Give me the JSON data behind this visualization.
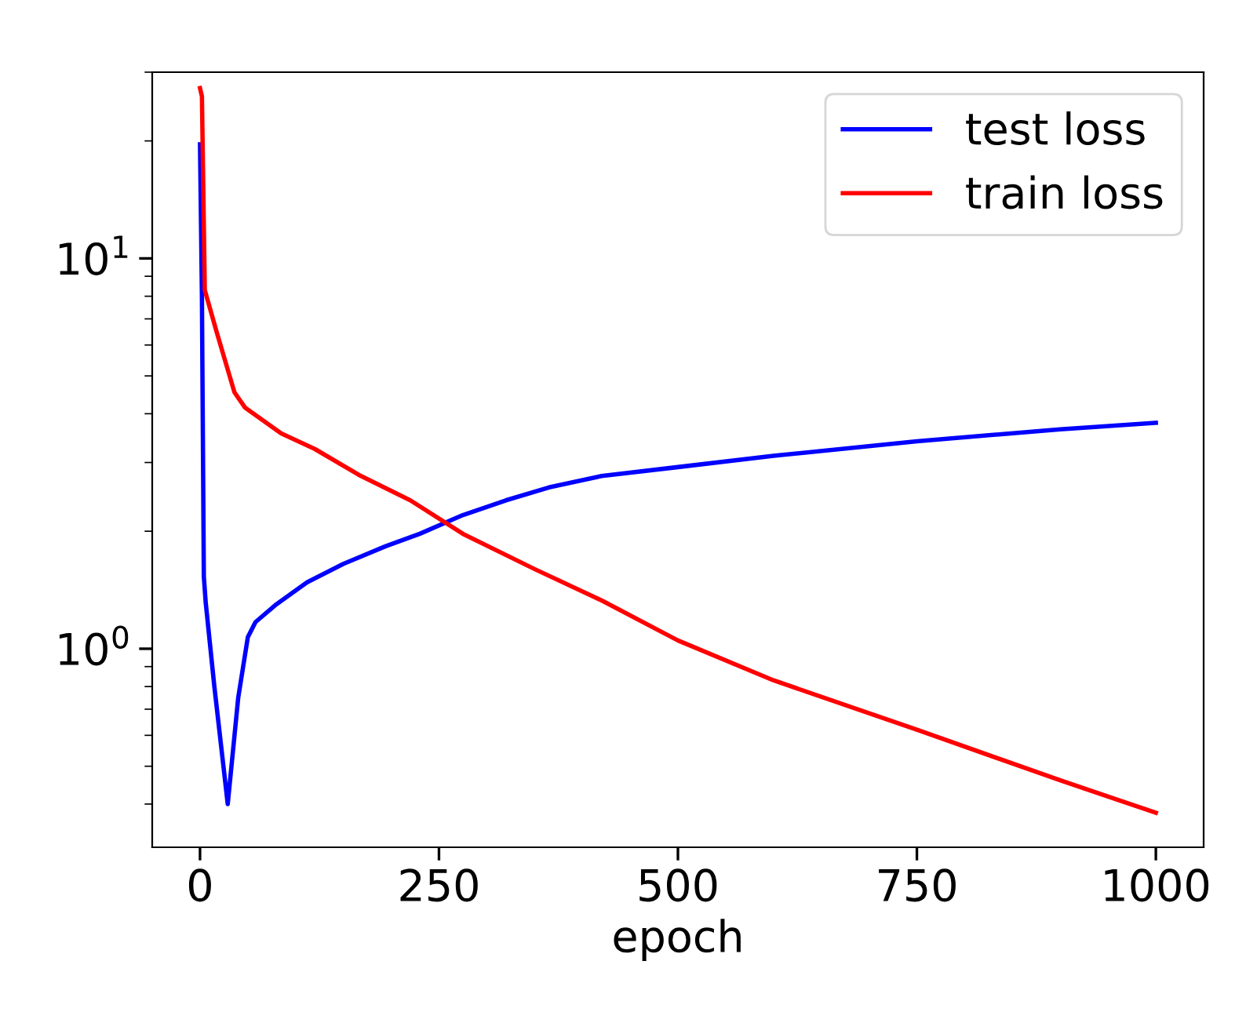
{
  "chart_data": {
    "type": "line",
    "xlabel": "epoch",
    "log": "y",
    "xlim": [
      -50,
      1050
    ],
    "xticks": [
      0,
      250,
      500,
      750,
      1000
    ],
    "ylim": [
      0.31,
      30
    ],
    "yticks": [
      {
        "value": 1,
        "label": "10$^{0}$"
      },
      {
        "value": 10,
        "label": "10$^{1}$"
      }
    ],
    "legend": "top right",
    "grid": false,
    "series": [
      {
        "name": "test loss",
        "color": "#0000ff",
        "x": [
          0,
          2,
          4,
          6,
          15,
          29,
          40,
          50,
          58,
          80,
          112,
          150,
          194,
          230,
          275,
          320,
          365,
          420,
          500,
          600,
          750,
          900,
          1000
        ],
        "values": [
          19.6,
          8,
          1.53,
          1.31,
          0.8,
          0.4,
          0.75,
          1.07,
          1.17,
          1.3,
          1.48,
          1.65,
          1.83,
          1.97,
          2.2,
          2.4,
          2.59,
          2.77,
          2.92,
          3.12,
          3.4,
          3.65,
          3.79
        ]
      },
      {
        "name": "train loss",
        "color": "#ff0000",
        "x": [
          0,
          2,
          5,
          17,
          36,
          47,
          85,
          120,
          166,
          220,
          275,
          350,
          420,
          500,
          600,
          750,
          900,
          1000
        ],
        "values": [
          27.3,
          26,
          8.3,
          6.53,
          4.54,
          4.15,
          3.56,
          3.25,
          2.79,
          2.4,
          1.97,
          1.6,
          1.33,
          1.05,
          0.83,
          0.62,
          0.46,
          0.38
        ]
      }
    ]
  }
}
